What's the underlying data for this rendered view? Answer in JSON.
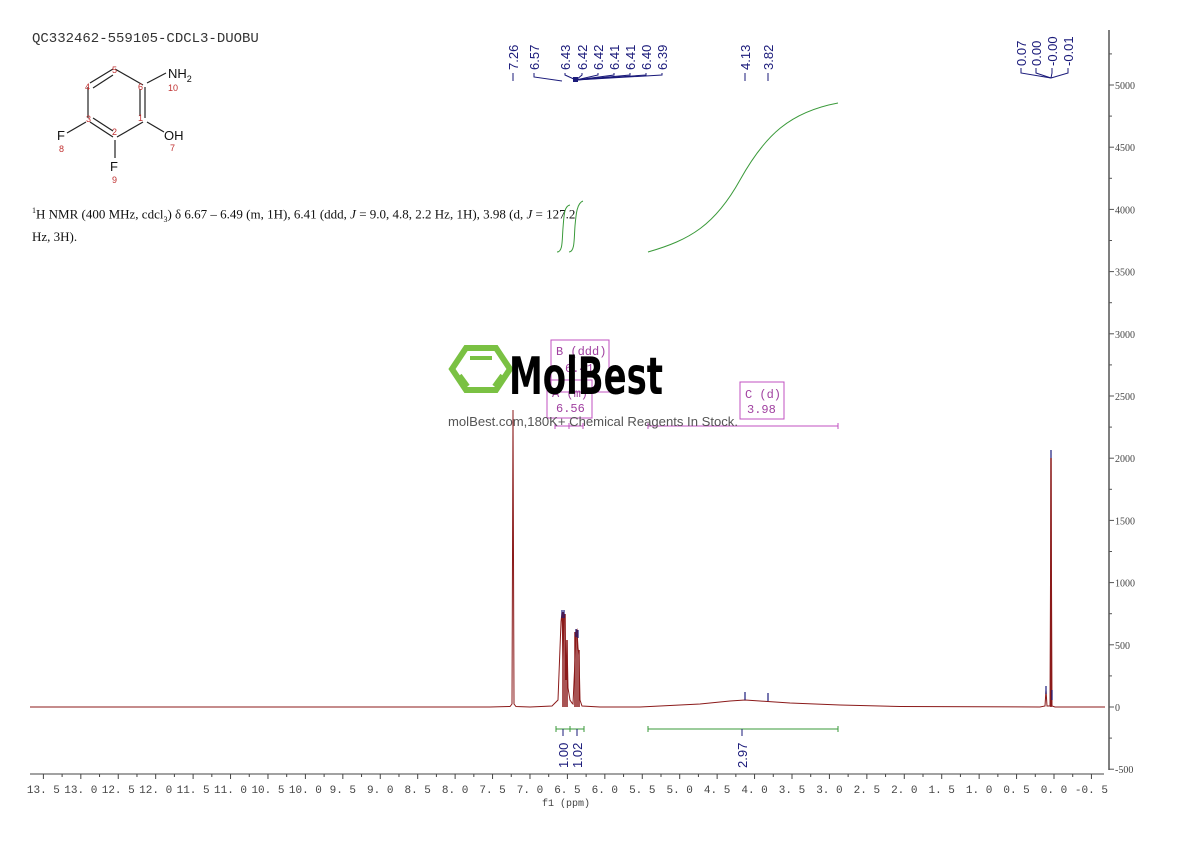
{
  "header": {
    "sample_title": "QC332462-559105-CDCL3-DUOBU"
  },
  "structure": {
    "atoms": [
      {
        "label": "NH2",
        "num": "10"
      },
      {
        "label": "OH",
        "num": "7"
      },
      {
        "label": "F",
        "num": "8"
      },
      {
        "label": "F",
        "num": "9"
      }
    ],
    "ring_numbers": [
      "1",
      "2",
      "3",
      "4",
      "5",
      "6"
    ],
    "nh2_label": "NH",
    "nh2_sub": "2",
    "oh_label": "OH",
    "f_label": "F",
    "num_10": "10",
    "num_7": "7",
    "num_8": "8",
    "num_9": "9",
    "num_1": "1",
    "num_2": "2",
    "num_3": "3",
    "num_4": "4",
    "num_5": "5",
    "num_6": "6"
  },
  "nmr_description": {
    "sup": "1",
    "prefix": "H NMR (400 MHz, cdcl",
    "sub": "3",
    "body_1": ") δ 6.67 – 6.49 (m, 1H), 6.41 (ddd, ",
    "j1": "J",
    "body_2": " = 9.0, 4.8, 2.2 Hz, 1H), 3.98 (d, ",
    "j2": "J",
    "body_3": " = 127.2",
    "line2": "Hz, 3H)."
  },
  "watermark": {
    "brand": "MolBest",
    "tagline": "molBest.com,180K+ Chemical Reagents In Stock."
  },
  "peak_labels": {
    "group1": [
      "7.26",
      "6.57",
      "6.43",
      "6.42",
      "6.42",
      "6.41",
      "6.41",
      "6.40",
      "6.39"
    ],
    "group2": [
      "4.13",
      "3.82"
    ],
    "group3": [
      "0.07",
      "0.00",
      "-0.00",
      "-0.01"
    ]
  },
  "multiplets": [
    {
      "id": "A",
      "type": "(m)",
      "shift": "6.56"
    },
    {
      "id": "B",
      "type": "(ddd)",
      "shift": "6.41"
    },
    {
      "id": "C",
      "type": "(d)",
      "shift": "3.98"
    }
  ],
  "integrals": [
    "1.00",
    "1.02",
    "2.97"
  ],
  "colors": {
    "spectrum": "#8b1a1a",
    "integral": "#3a9a3a",
    "peak_label": "#1a1a7a",
    "multiplet_box": "#c050c0",
    "axis": "#555555",
    "logo_green": "#7ac143"
  },
  "chart_data": {
    "type": "line",
    "title": "QC332462-559105-CDCL3-DUOBU",
    "xlabel": "f1 (ppm)",
    "ylabel": "",
    "xlim": [
      13.7,
      -0.7
    ],
    "ylim": [
      -500,
      5400
    ],
    "x_ticks": [
      "13.5",
      "13.0",
      "12.5",
      "12.0",
      "11.5",
      "11.0",
      "10.5",
      "10.0",
      "9.5",
      "9.0",
      "8.5",
      "8.0",
      "7.5",
      "7.0",
      "6.5",
      "6.0",
      "5.5",
      "5.0",
      "4.5",
      "4.0",
      "3.5",
      "3.0",
      "2.5",
      "2.0",
      "1.5",
      "1.0",
      "0.5",
      "0.0",
      "-0.5"
    ],
    "y_ticks": [
      "-500",
      "0",
      "500",
      "1000",
      "1500",
      "2000",
      "2500",
      "3000",
      "3500",
      "4000",
      "4500",
      "5000"
    ],
    "peaks": [
      {
        "ppm": 7.26,
        "intensity": 2380,
        "label": "CDCl3"
      },
      {
        "ppm": 6.57,
        "intensity": 760
      },
      {
        "ppm": 6.55,
        "intensity": 700
      },
      {
        "ppm": 6.53,
        "intensity": 530
      },
      {
        "ppm": 6.43,
        "intensity": 610
      },
      {
        "ppm": 6.41,
        "intensity": 560
      },
      {
        "ppm": 6.39,
        "intensity": 450
      },
      {
        "ppm": 4.13,
        "intensity": 45,
        "broad": true
      },
      {
        "ppm": 3.82,
        "intensity": 20
      },
      {
        "ppm": 2.07,
        "intensity": 15
      },
      {
        "ppm": 0.07,
        "intensity": 140
      },
      {
        "ppm": 0.0,
        "intensity": 1990
      }
    ],
    "integrals": [
      {
        "from": 6.67,
        "to": 6.49,
        "value": 1.0
      },
      {
        "from": 6.49,
        "to": 6.32,
        "value": 1.02
      },
      {
        "from": 5.45,
        "to": 2.88,
        "value": 2.97
      }
    ],
    "grid": false,
    "legend": "none"
  },
  "axis": {
    "x_label": "f1 (ppm)"
  }
}
